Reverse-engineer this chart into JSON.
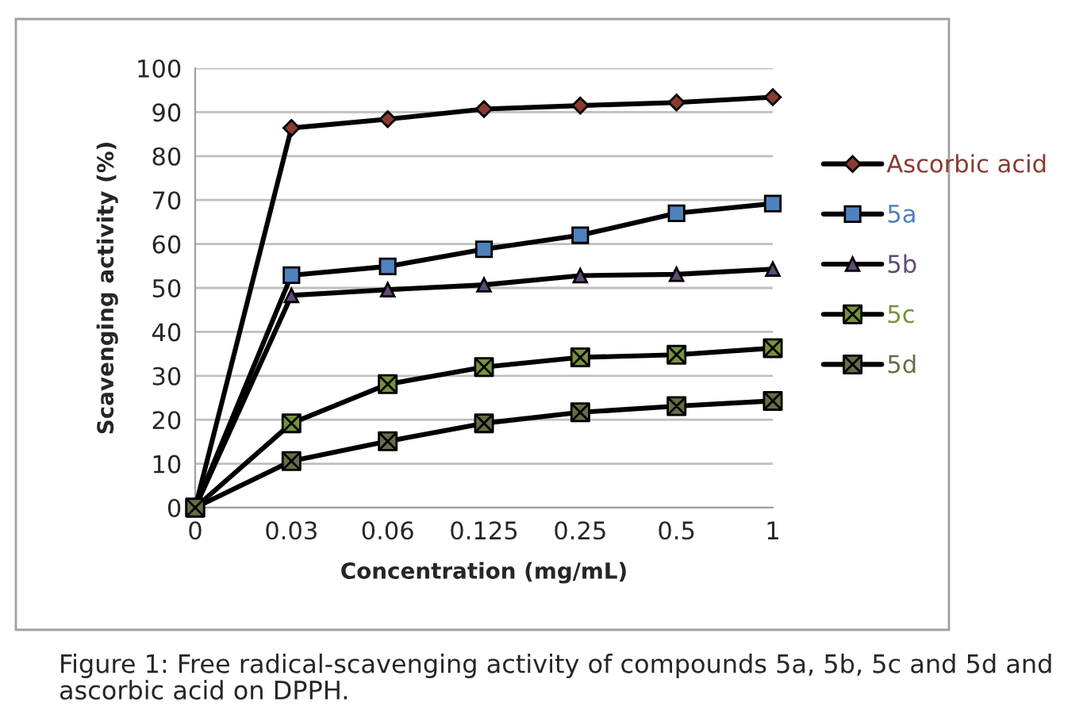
{
  "chart_data": {
    "type": "line",
    "categories": [
      "0",
      "0.03",
      "0.06",
      "0.125",
      "0.25",
      "0.5",
      "1"
    ],
    "xlabel": "Concentration (mg/mL)",
    "ylabel": "Scavenging activity (%)",
    "ylim": [
      0,
      100
    ],
    "yticks": [
      0,
      10,
      20,
      30,
      40,
      50,
      60,
      70,
      80,
      90,
      100
    ],
    "grid": "y",
    "legend": "right",
    "series": [
      {
        "name": "Ascorbic acid",
        "color": "#8b3a32",
        "marker": "diamond",
        "values": [
          0,
          86.4,
          88.4,
          90.7,
          91.5,
          92.2,
          93.4
        ]
      },
      {
        "name": "5a",
        "color": "#4f81bd",
        "marker": "square",
        "values": [
          0,
          52.9,
          54.9,
          58.8,
          62.0,
          67.0,
          69.2
        ]
      },
      {
        "name": "5b",
        "color": "#604a7b",
        "marker": "triangle",
        "values": [
          0,
          48.3,
          49.6,
          50.7,
          52.8,
          53.1,
          54.3
        ]
      },
      {
        "name": "5c",
        "color": "#76923c",
        "marker": "cross",
        "values": [
          0,
          19.2,
          28.1,
          32.0,
          34.2,
          34.8,
          36.3
        ]
      },
      {
        "name": "5d",
        "color": "#6b6b47",
        "marker": "cross",
        "values": [
          0,
          10.6,
          15.1,
          19.2,
          21.7,
          23.1,
          24.3
        ]
      }
    ],
    "annotations": [
      "Figure 1: Free radical-scavenging activity of compounds 5a, 5b, 5c and 5d and ascorbic acid on DPPH."
    ]
  }
}
